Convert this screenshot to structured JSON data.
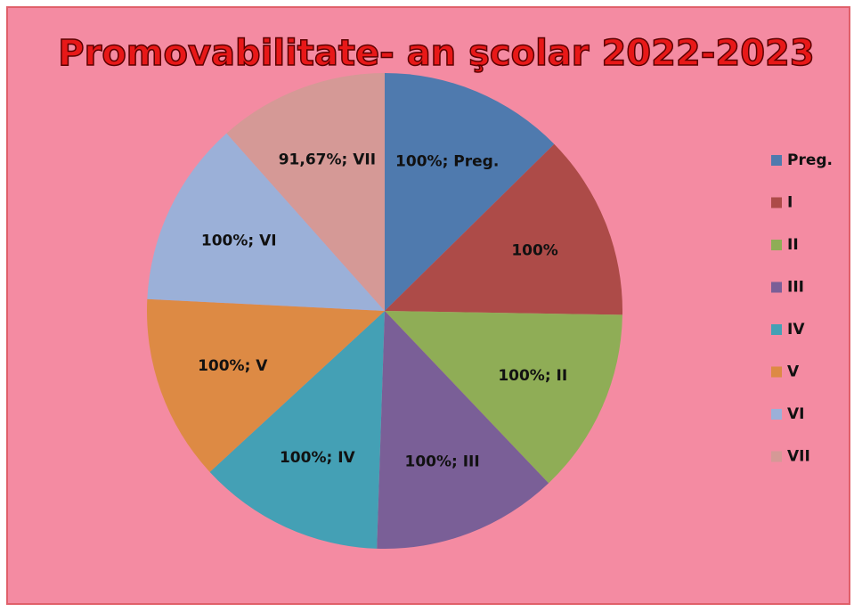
{
  "chart_data": {
    "type": "pie",
    "title": "Promovabilitate- an şcolar 2022-2023",
    "categories": [
      "Preg.",
      "I",
      "II",
      "III",
      "IV",
      "V",
      "VI",
      "VII"
    ],
    "values": [
      100,
      100,
      100,
      100,
      100,
      100,
      100,
      91.67
    ],
    "value_labels": [
      "100%; Preg.",
      "100%",
      "100%; II",
      "100%; III",
      "100%; IV",
      "100%; V",
      "100%; VI",
      "91,67%; VII"
    ],
    "colors": [
      "#4f7aae",
      "#ad4b48",
      "#8fad56",
      "#7a5f97",
      "#44a0b5",
      "#dd8a44",
      "#9bb0d8",
      "#d59996"
    ],
    "legend": "right"
  }
}
